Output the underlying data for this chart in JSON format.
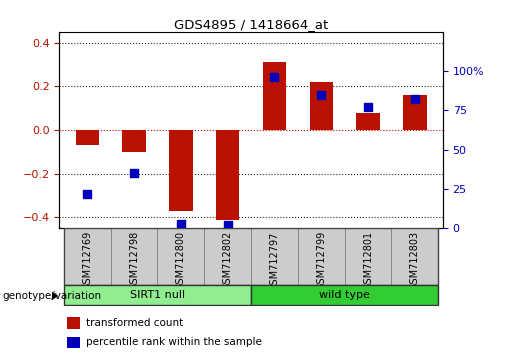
{
  "title": "GDS4895 / 1418664_at",
  "samples": [
    "GSM712769",
    "GSM712798",
    "GSM712800",
    "GSM712802",
    "GSM712797",
    "GSM712799",
    "GSM712801",
    "GSM712803"
  ],
  "red_values": [
    -0.07,
    -0.1,
    -0.37,
    -0.41,
    0.31,
    0.22,
    0.08,
    0.16
  ],
  "blue_values": [
    22,
    35,
    3,
    2,
    96,
    85,
    77,
    82
  ],
  "groups": [
    {
      "label": "SIRT1 null",
      "start": 0,
      "end": 4,
      "color": "#90EE90"
    },
    {
      "label": "wild type",
      "start": 4,
      "end": 8,
      "color": "#32CD32"
    }
  ],
  "group_label": "genotype/variation",
  "ylim_left": [
    -0.45,
    0.45
  ],
  "ylim_right": [
    0,
    125
  ],
  "yticks_left": [
    -0.4,
    -0.2,
    0.0,
    0.2,
    0.4
  ],
  "yticks_right": [
    0,
    25,
    50,
    75,
    100
  ],
  "ytick_labels_right": [
    "0",
    "25",
    "50",
    "75",
    "100%"
  ],
  "red_color": "#BB1100",
  "blue_color": "#0000BB",
  "bar_width": 0.5,
  "marker_size": 6,
  "title_color": "#000000",
  "left_tick_color": "#BB1100",
  "right_tick_color": "#0000BB",
  "legend_red": "transformed count",
  "legend_blue": "percentile rank within the sample",
  "plot_bg": "#FFFFFF",
  "tick_bg": "#CCCCCC",
  "xlim": [
    -0.6,
    7.6
  ]
}
